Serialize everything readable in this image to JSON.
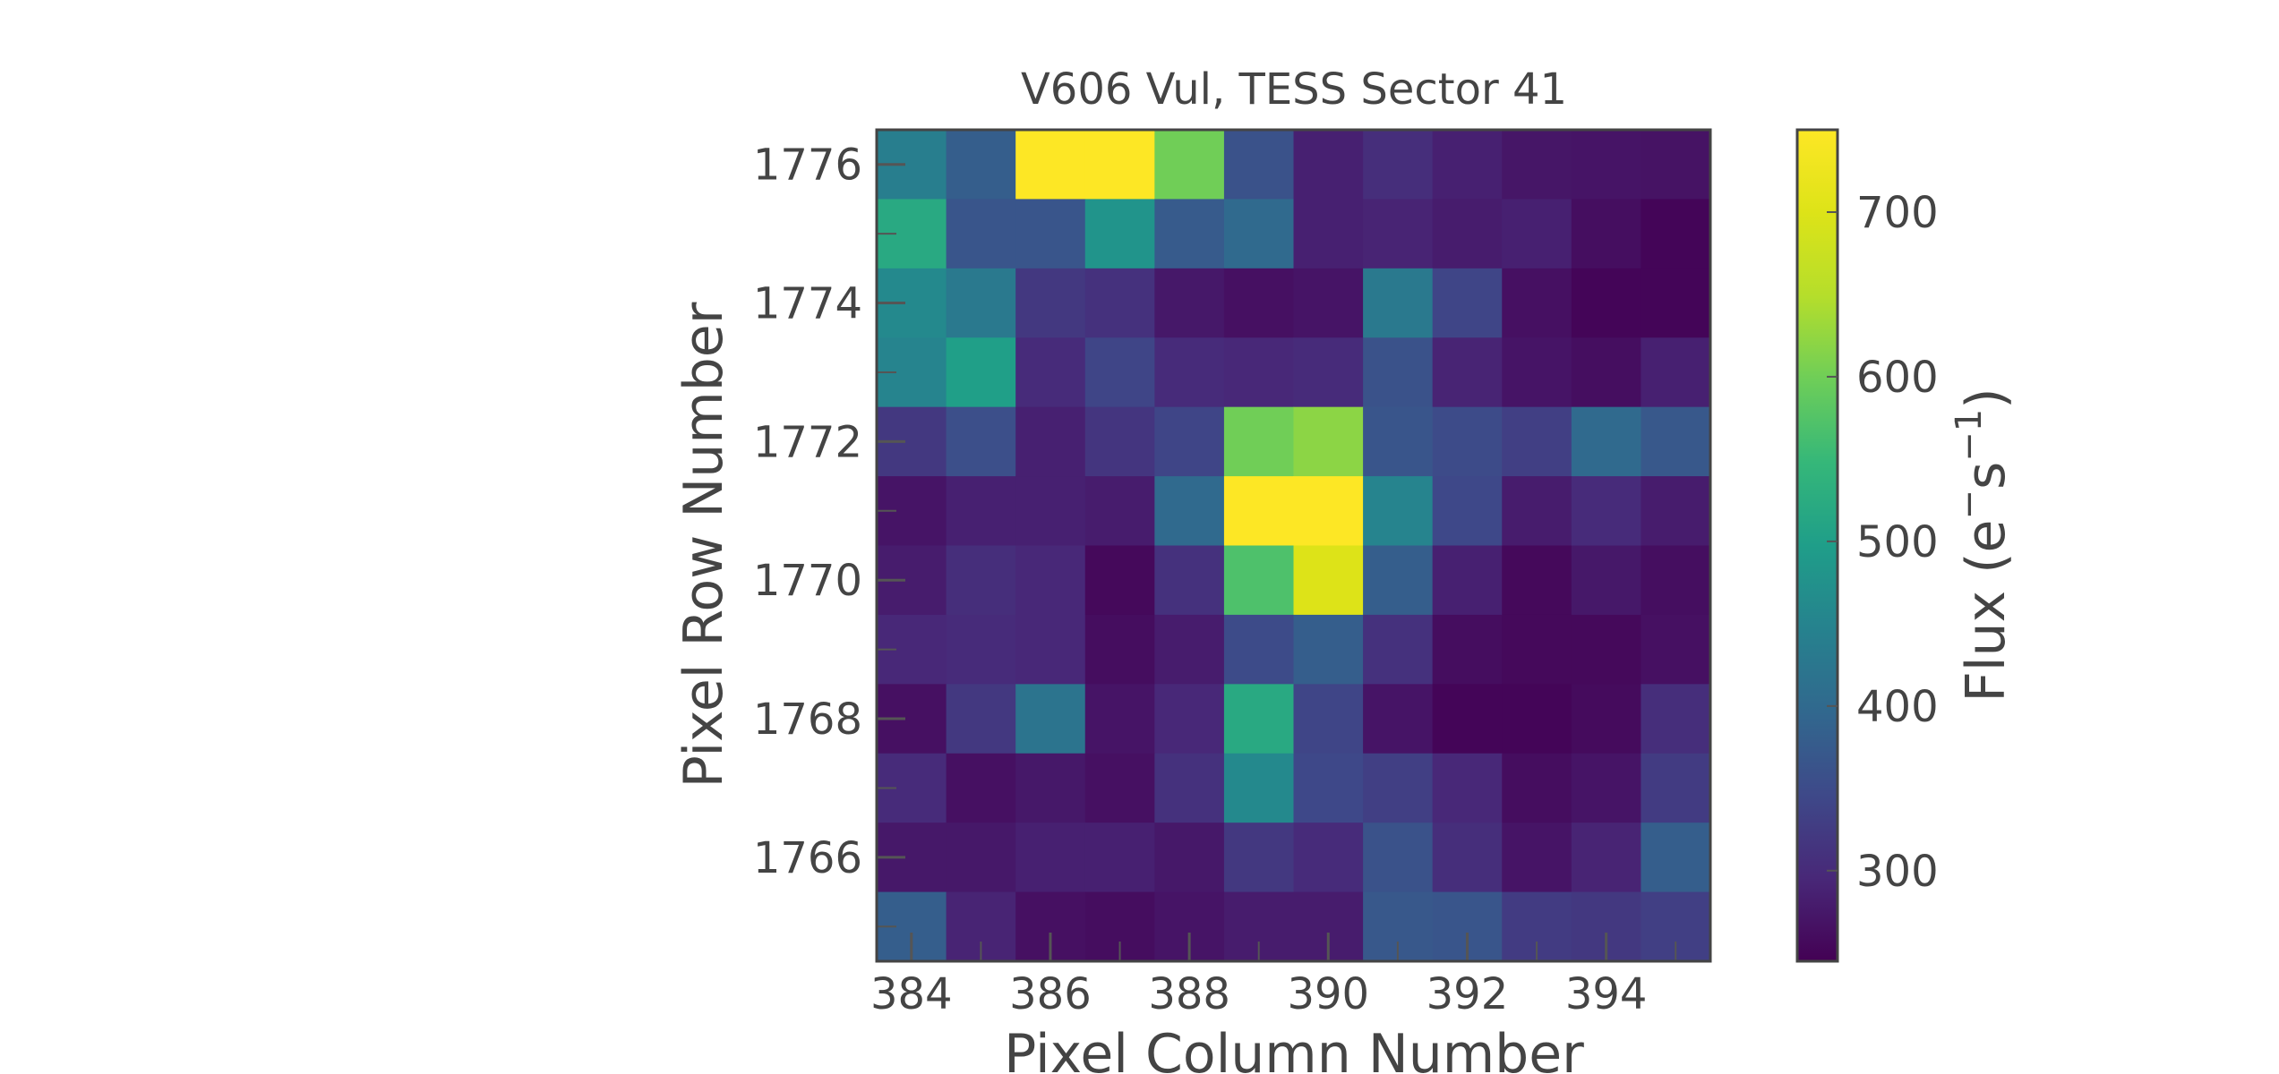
{
  "chart_data": {
    "type": "heatmap",
    "title": "V606 Vul, TESS Sector 41",
    "xlabel": "Pixel Column Number",
    "ylabel": "Pixel Row Number",
    "colorbar_label": "Flux (e⁻s⁻¹)",
    "colorbar_label_parts": {
      "prefix": "Flux (e",
      "sup1": "−",
      "mid": "s",
      "sup2": "−1",
      "suffix": ")"
    },
    "columns": [
      384,
      385,
      386,
      387,
      388,
      389,
      390,
      391,
      392,
      393,
      394,
      395
    ],
    "rows": [
      1776,
      1775,
      1774,
      1773,
      1772,
      1771,
      1770,
      1769,
      1768,
      1767,
      1766,
      1765
    ],
    "values": [
      [
        440,
        380,
        750,
        750,
        600,
        360,
        285,
        305,
        285,
        272,
        270,
        268
      ],
      [
        520,
        365,
        365,
        480,
        375,
        400,
        285,
        290,
        280,
        285,
        262,
        250
      ],
      [
        460,
        430,
        320,
        310,
        275,
        265,
        270,
        430,
        340,
        265,
        250,
        250
      ],
      [
        450,
        500,
        300,
        340,
        300,
        295,
        300,
        360,
        290,
        270,
        262,
        285
      ],
      [
        320,
        355,
        285,
        315,
        340,
        600,
        620,
        365,
        350,
        330,
        400,
        370
      ],
      [
        270,
        285,
        285,
        280,
        400,
        750,
        750,
        450,
        345,
        280,
        300,
        280
      ],
      [
        280,
        305,
        295,
        255,
        310,
        570,
        700,
        380,
        285,
        255,
        275,
        262
      ],
      [
        295,
        300,
        295,
        260,
        280,
        350,
        380,
        310,
        260,
        255,
        255,
        265
      ],
      [
        265,
        320,
        420,
        270,
        295,
        520,
        340,
        270,
        250,
        250,
        258,
        305
      ],
      [
        300,
        265,
        275,
        265,
        310,
        460,
        345,
        330,
        295,
        260,
        270,
        325
      ],
      [
        275,
        275,
        285,
        285,
        275,
        320,
        300,
        360,
        305,
        270,
        290,
        380
      ],
      [
        380,
        290,
        265,
        260,
        270,
        280,
        280,
        370,
        365,
        325,
        320,
        330
      ]
    ],
    "x_ticks": [
      384,
      386,
      388,
      390,
      392,
      394
    ],
    "y_ticks": [
      1776,
      1774,
      1772,
      1770,
      1768,
      1766
    ],
    "colorbar_ticks": [
      300,
      400,
      500,
      600,
      700
    ],
    "color_range": [
      245,
      750
    ],
    "colormap": "viridis",
    "grid": false
  }
}
